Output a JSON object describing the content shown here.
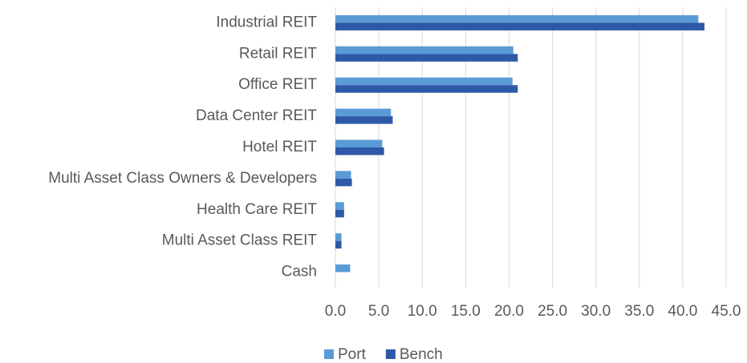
{
  "chart_data": {
    "type": "hbar",
    "categories": [
      "Industrial REIT",
      "Retail REIT",
      "Office REIT",
      "Data Center REIT",
      "Hotel REIT",
      "Multi Asset Class Owners & Developers",
      "Health Care REIT",
      "Multi Asset Class REIT",
      "Cash"
    ],
    "series": [
      {
        "name": "Port",
        "color": "#5b9bd5",
        "values": [
          41.8,
          20.5,
          20.4,
          6.4,
          5.4,
          1.8,
          1.0,
          0.7,
          1.7
        ]
      },
      {
        "name": "Bench",
        "color": "#2e59a8",
        "values": [
          42.5,
          21.0,
          21.0,
          6.6,
          5.6,
          1.9,
          1.0,
          0.7,
          0
        ]
      }
    ],
    "xlim": [
      0,
      45
    ],
    "xticks": [
      {
        "value": 0,
        "label": "0.0"
      },
      {
        "value": 5,
        "label": "5.0"
      },
      {
        "value": 10,
        "label": "10.0"
      },
      {
        "value": 15,
        "label": "15.0"
      },
      {
        "value": 20,
        "label": "20.0"
      },
      {
        "value": 25,
        "label": "25.0"
      },
      {
        "value": 30,
        "label": "30.0"
      },
      {
        "value": 35,
        "label": "35.0"
      },
      {
        "value": 40,
        "label": "40.0"
      },
      {
        "value": 45,
        "label": "45.0"
      }
    ],
    "grid": true,
    "legend": "bottom"
  }
}
